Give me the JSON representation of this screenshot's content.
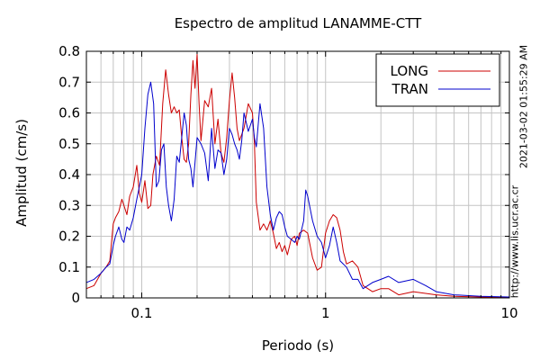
{
  "chart_data": {
    "type": "line",
    "title": "Espectro de amplitud LANAMME-CTT",
    "xlabel": "Periodo (s)",
    "ylabel": "Amplitud (cm/s)",
    "xscale": "log",
    "xlim": [
      0.05,
      10
    ],
    "ylim": [
      0,
      0.8
    ],
    "x_tick_labels": [
      {
        "value": 0.1,
        "label": "0.1"
      },
      {
        "value": 1,
        "label": "1"
      },
      {
        "value": 10,
        "label": "10"
      }
    ],
    "y_tick_labels": [
      "0",
      "0.1",
      "0.2",
      "0.3",
      "0.4",
      "0.5",
      "0.6",
      "0.7",
      "0.8"
    ],
    "grid": true,
    "legend": "top-right",
    "side_annotations": [
      "2021-03-02 01:55:29 AM",
      "http://www.lis.ucr.ac.cr"
    ],
    "series": [
      {
        "name": "LONG",
        "color": "#cc0000",
        "points": [
          [
            0.05,
            0.03
          ],
          [
            0.055,
            0.04
          ],
          [
            0.06,
            0.08
          ],
          [
            0.064,
            0.1
          ],
          [
            0.067,
            0.12
          ],
          [
            0.07,
            0.24
          ],
          [
            0.072,
            0.26
          ],
          [
            0.075,
            0.28
          ],
          [
            0.078,
            0.32
          ],
          [
            0.08,
            0.3
          ],
          [
            0.083,
            0.27
          ],
          [
            0.086,
            0.33
          ],
          [
            0.09,
            0.36
          ],
          [
            0.094,
            0.43
          ],
          [
            0.097,
            0.34
          ],
          [
            0.1,
            0.31
          ],
          [
            0.104,
            0.38
          ],
          [
            0.108,
            0.29
          ],
          [
            0.112,
            0.3
          ],
          [
            0.115,
            0.4
          ],
          [
            0.12,
            0.46
          ],
          [
            0.125,
            0.43
          ],
          [
            0.13,
            0.63
          ],
          [
            0.135,
            0.74
          ],
          [
            0.14,
            0.66
          ],
          [
            0.145,
            0.6
          ],
          [
            0.15,
            0.62
          ],
          [
            0.155,
            0.6
          ],
          [
            0.16,
            0.61
          ],
          [
            0.165,
            0.52
          ],
          [
            0.17,
            0.45
          ],
          [
            0.175,
            0.44
          ],
          [
            0.18,
            0.5
          ],
          [
            0.185,
            0.66
          ],
          [
            0.19,
            0.77
          ],
          [
            0.195,
            0.68
          ],
          [
            0.2,
            0.79
          ],
          [
            0.205,
            0.63
          ],
          [
            0.21,
            0.51
          ],
          [
            0.22,
            0.64
          ],
          [
            0.23,
            0.62
          ],
          [
            0.24,
            0.68
          ],
          [
            0.25,
            0.5
          ],
          [
            0.26,
            0.58
          ],
          [
            0.27,
            0.47
          ],
          [
            0.28,
            0.44
          ],
          [
            0.29,
            0.52
          ],
          [
            0.3,
            0.64
          ],
          [
            0.31,
            0.73
          ],
          [
            0.32,
            0.65
          ],
          [
            0.33,
            0.55
          ],
          [
            0.34,
            0.51
          ],
          [
            0.36,
            0.55
          ],
          [
            0.38,
            0.63
          ],
          [
            0.4,
            0.6
          ],
          [
            0.41,
            0.5
          ],
          [
            0.42,
            0.31
          ],
          [
            0.44,
            0.22
          ],
          [
            0.46,
            0.24
          ],
          [
            0.48,
            0.22
          ],
          [
            0.5,
            0.25
          ],
          [
            0.52,
            0.21
          ],
          [
            0.54,
            0.16
          ],
          [
            0.56,
            0.18
          ],
          [
            0.58,
            0.15
          ],
          [
            0.6,
            0.17
          ],
          [
            0.62,
            0.14
          ],
          [
            0.65,
            0.19
          ],
          [
            0.68,
            0.2
          ],
          [
            0.7,
            0.17
          ],
          [
            0.72,
            0.21
          ],
          [
            0.76,
            0.22
          ],
          [
            0.8,
            0.21
          ],
          [
            0.85,
            0.13
          ],
          [
            0.9,
            0.09
          ],
          [
            0.95,
            0.1
          ],
          [
            1.0,
            0.21
          ],
          [
            1.05,
            0.25
          ],
          [
            1.1,
            0.27
          ],
          [
            1.15,
            0.26
          ],
          [
            1.2,
            0.22
          ],
          [
            1.25,
            0.15
          ],
          [
            1.3,
            0.11
          ],
          [
            1.4,
            0.12
          ],
          [
            1.5,
            0.1
          ],
          [
            1.6,
            0.04
          ],
          [
            1.8,
            0.02
          ],
          [
            2.0,
            0.03
          ],
          [
            2.2,
            0.03
          ],
          [
            2.5,
            0.01
          ],
          [
            3.0,
            0.02
          ],
          [
            4.0,
            0.01
          ],
          [
            5.0,
            0.005
          ],
          [
            7.0,
            0.003
          ],
          [
            10.0,
            0.002
          ]
        ]
      },
      {
        "name": "TRAN",
        "color": "#0000cc",
        "points": [
          [
            0.05,
            0.05
          ],
          [
            0.055,
            0.06
          ],
          [
            0.06,
            0.08
          ],
          [
            0.064,
            0.1
          ],
          [
            0.067,
            0.11
          ],
          [
            0.07,
            0.17
          ],
          [
            0.072,
            0.2
          ],
          [
            0.075,
            0.23
          ],
          [
            0.078,
            0.19
          ],
          [
            0.08,
            0.18
          ],
          [
            0.083,
            0.23
          ],
          [
            0.086,
            0.22
          ],
          [
            0.09,
            0.26
          ],
          [
            0.094,
            0.32
          ],
          [
            0.097,
            0.36
          ],
          [
            0.1,
            0.4
          ],
          [
            0.104,
            0.55
          ],
          [
            0.108,
            0.66
          ],
          [
            0.112,
            0.7
          ],
          [
            0.116,
            0.63
          ],
          [
            0.12,
            0.36
          ],
          [
            0.124,
            0.38
          ],
          [
            0.128,
            0.48
          ],
          [
            0.132,
            0.5
          ],
          [
            0.136,
            0.36
          ],
          [
            0.14,
            0.3
          ],
          [
            0.145,
            0.25
          ],
          [
            0.15,
            0.32
          ],
          [
            0.155,
            0.46
          ],
          [
            0.16,
            0.44
          ],
          [
            0.165,
            0.52
          ],
          [
            0.17,
            0.6
          ],
          [
            0.175,
            0.56
          ],
          [
            0.18,
            0.45
          ],
          [
            0.185,
            0.42
          ],
          [
            0.19,
            0.36
          ],
          [
            0.2,
            0.52
          ],
          [
            0.21,
            0.5
          ],
          [
            0.22,
            0.47
          ],
          [
            0.23,
            0.38
          ],
          [
            0.24,
            0.55
          ],
          [
            0.25,
            0.42
          ],
          [
            0.26,
            0.48
          ],
          [
            0.27,
            0.47
          ],
          [
            0.28,
            0.4
          ],
          [
            0.29,
            0.45
          ],
          [
            0.3,
            0.55
          ],
          [
            0.31,
            0.53
          ],
          [
            0.32,
            0.5
          ],
          [
            0.33,
            0.48
          ],
          [
            0.34,
            0.45
          ],
          [
            0.35,
            0.51
          ],
          [
            0.36,
            0.6
          ],
          [
            0.38,
            0.54
          ],
          [
            0.4,
            0.58
          ],
          [
            0.41,
            0.52
          ],
          [
            0.42,
            0.49
          ],
          [
            0.44,
            0.63
          ],
          [
            0.46,
            0.55
          ],
          [
            0.48,
            0.36
          ],
          [
            0.5,
            0.27
          ],
          [
            0.52,
            0.22
          ],
          [
            0.54,
            0.26
          ],
          [
            0.56,
            0.28
          ],
          [
            0.58,
            0.27
          ],
          [
            0.6,
            0.23
          ],
          [
            0.62,
            0.2
          ],
          [
            0.65,
            0.19
          ],
          [
            0.68,
            0.18
          ],
          [
            0.7,
            0.2
          ],
          [
            0.72,
            0.19
          ],
          [
            0.76,
            0.25
          ],
          [
            0.78,
            0.35
          ],
          [
            0.8,
            0.33
          ],
          [
            0.85,
            0.25
          ],
          [
            0.9,
            0.2
          ],
          [
            0.95,
            0.18
          ],
          [
            1.0,
            0.13
          ],
          [
            1.05,
            0.17
          ],
          [
            1.1,
            0.23
          ],
          [
            1.15,
            0.18
          ],
          [
            1.2,
            0.12
          ],
          [
            1.3,
            0.1
          ],
          [
            1.4,
            0.06
          ],
          [
            1.5,
            0.06
          ],
          [
            1.6,
            0.03
          ],
          [
            1.8,
            0.05
          ],
          [
            2.0,
            0.06
          ],
          [
            2.2,
            0.07
          ],
          [
            2.5,
            0.05
          ],
          [
            3.0,
            0.06
          ],
          [
            3.5,
            0.04
          ],
          [
            4.0,
            0.02
          ],
          [
            5.0,
            0.01
          ],
          [
            7.0,
            0.005
          ],
          [
            10.0,
            0.003
          ]
        ]
      }
    ]
  }
}
